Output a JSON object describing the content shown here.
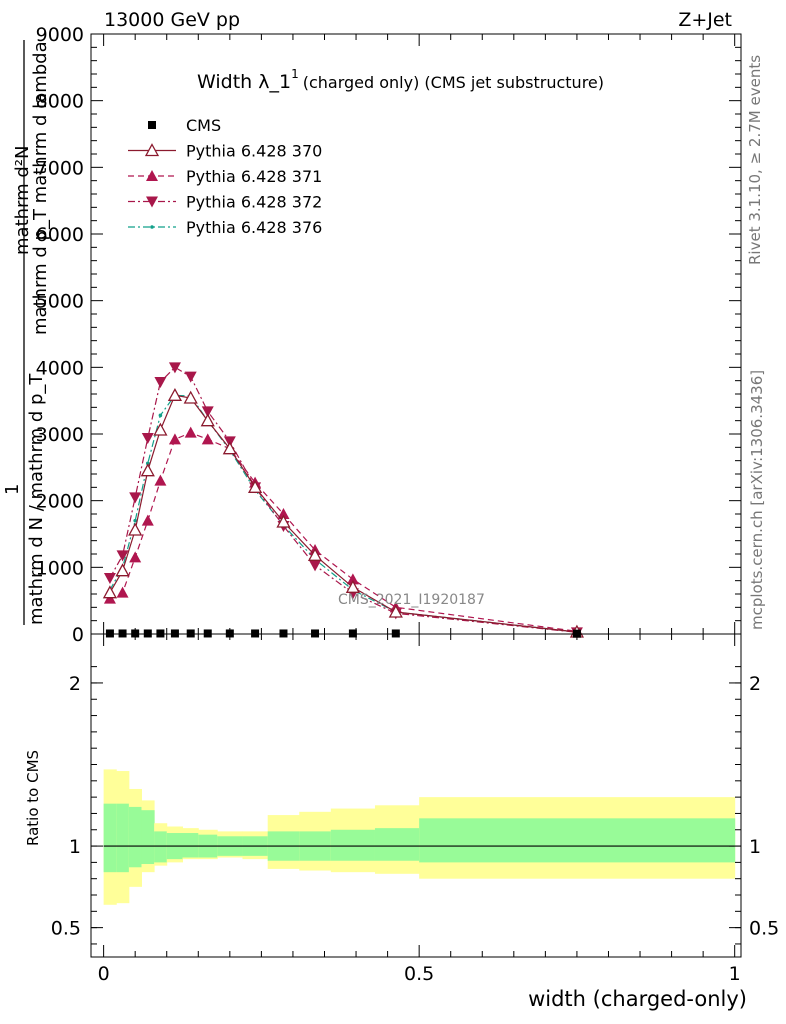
{
  "header": {
    "energy_label": "13000 GeV pp",
    "process_label": "Z+Jet",
    "plot_title_main": "Width λ_1",
    "plot_title_sup": "1",
    "plot_title_suffix": "(charged only) (CMS jet substructure)",
    "rivet_label": "Rivet 3.1.10, ≥ 2.7M events",
    "mcplots_label": "mcplots.cern.ch [arXiv:1306.3436]",
    "analysis_watermark": "CMS_2021_I1920187"
  },
  "main_ylabel": {
    "line1": "mathrm d²N",
    "line2": "mathrm d p_T mathrm d lambda",
    "numer_one": "1",
    "denom": "mathrm d N / mathrm d p_T"
  },
  "ratio_ylabel": "Ratio to CMS",
  "xlabel": "width (charged-only)",
  "colors": {
    "cms": "#000000",
    "p370": "#8b1a2e",
    "p371": "#b0164f",
    "p372": "#a8174a",
    "p376": "#12a08a",
    "band_inner": "#98fb98",
    "band_outer": "#ffff99"
  },
  "chart_data": [
    {
      "type": "line",
      "panel": "main",
      "xlim": [
        -0.02,
        1.01
      ],
      "ylim": [
        0,
        9000
      ],
      "yticks": [
        0,
        1000,
        2000,
        3000,
        4000,
        5000,
        6000,
        7000,
        8000,
        9000
      ],
      "ytick_labels": [
        "0",
        "1000",
        "2000",
        "3000",
        "4000",
        "5000",
        "6000",
        "7000",
        "8000",
        "9000"
      ],
      "x": [
        0.01,
        0.03,
        0.05,
        0.07,
        0.09,
        0.113,
        0.138,
        0.165,
        0.2,
        0.24,
        0.285,
        0.335,
        0.395,
        0.463,
        0.75
      ],
      "series": [
        {
          "name": "CMS",
          "marker": "square",
          "values": [
            8,
            8,
            8,
            8,
            8,
            8,
            8,
            8,
            8,
            8,
            8,
            8,
            8,
            8,
            5
          ]
        },
        {
          "name": "Pythia 6.428 370",
          "marker": "open-triangle-up",
          "dash": "solid",
          "values": [
            620,
            950,
            1560,
            2450,
            3060,
            3580,
            3540,
            3200,
            2780,
            2200,
            1680,
            1180,
            700,
            330,
            30
          ]
        },
        {
          "name": "Pythia 6.428 371",
          "marker": "triangle-up",
          "dash": "dashed",
          "values": [
            530,
            620,
            1150,
            1700,
            2300,
            2920,
            3020,
            2920,
            2780,
            2270,
            1800,
            1260,
            820,
            400,
            40
          ]
        },
        {
          "name": "Pythia 6.428 372",
          "marker": "triangle-down",
          "dash": "dashdot",
          "values": [
            840,
            1180,
            2050,
            2940,
            3780,
            4000,
            3860,
            3340,
            2890,
            2200,
            1620,
            1030,
            610,
            310,
            25
          ]
        },
        {
          "name": "Pythia 6.428 376",
          "marker": "dot",
          "dash": "dashdot",
          "values": [
            660,
            1000,
            1700,
            2560,
            3280,
            3580,
            3570,
            3200,
            2760,
            2160,
            1630,
            1120,
            660,
            330,
            30
          ]
        }
      ]
    },
    {
      "type": "area",
      "panel": "ratio",
      "xlim": [
        -0.02,
        1.01
      ],
      "ylim": [
        0.32,
        2.3
      ],
      "yticks": [
        0.5,
        1,
        2
      ],
      "ytick_labels": [
        "0.5",
        "1",
        "2"
      ],
      "xticks": [
        0,
        0.5,
        1
      ],
      "xtick_labels": [
        "0",
        "0.5",
        "1"
      ],
      "bin_edges": [
        0.0,
        0.02,
        0.04,
        0.06,
        0.08,
        0.1,
        0.125,
        0.15,
        0.18,
        0.22,
        0.26,
        0.31,
        0.36,
        0.43,
        0.5,
        1.0
      ],
      "ratio_reference": 1.0,
      "band_inner_low": [
        0.84,
        0.84,
        0.87,
        0.89,
        0.9,
        0.92,
        0.93,
        0.93,
        0.94,
        0.94,
        0.91,
        0.91,
        0.91,
        0.91,
        0.9
      ],
      "band_inner_high": [
        1.26,
        1.26,
        1.24,
        1.22,
        1.09,
        1.08,
        1.08,
        1.07,
        1.06,
        1.06,
        1.09,
        1.09,
        1.1,
        1.11,
        1.17
      ],
      "band_outer_low": [
        0.64,
        0.65,
        0.75,
        0.84,
        0.88,
        0.9,
        0.92,
        0.92,
        0.93,
        0.92,
        0.86,
        0.85,
        0.84,
        0.83,
        0.8
      ],
      "band_outer_high": [
        1.47,
        1.46,
        1.35,
        1.28,
        1.14,
        1.12,
        1.11,
        1.1,
        1.09,
        1.09,
        1.19,
        1.21,
        1.23,
        1.25,
        1.3
      ]
    }
  ]
}
